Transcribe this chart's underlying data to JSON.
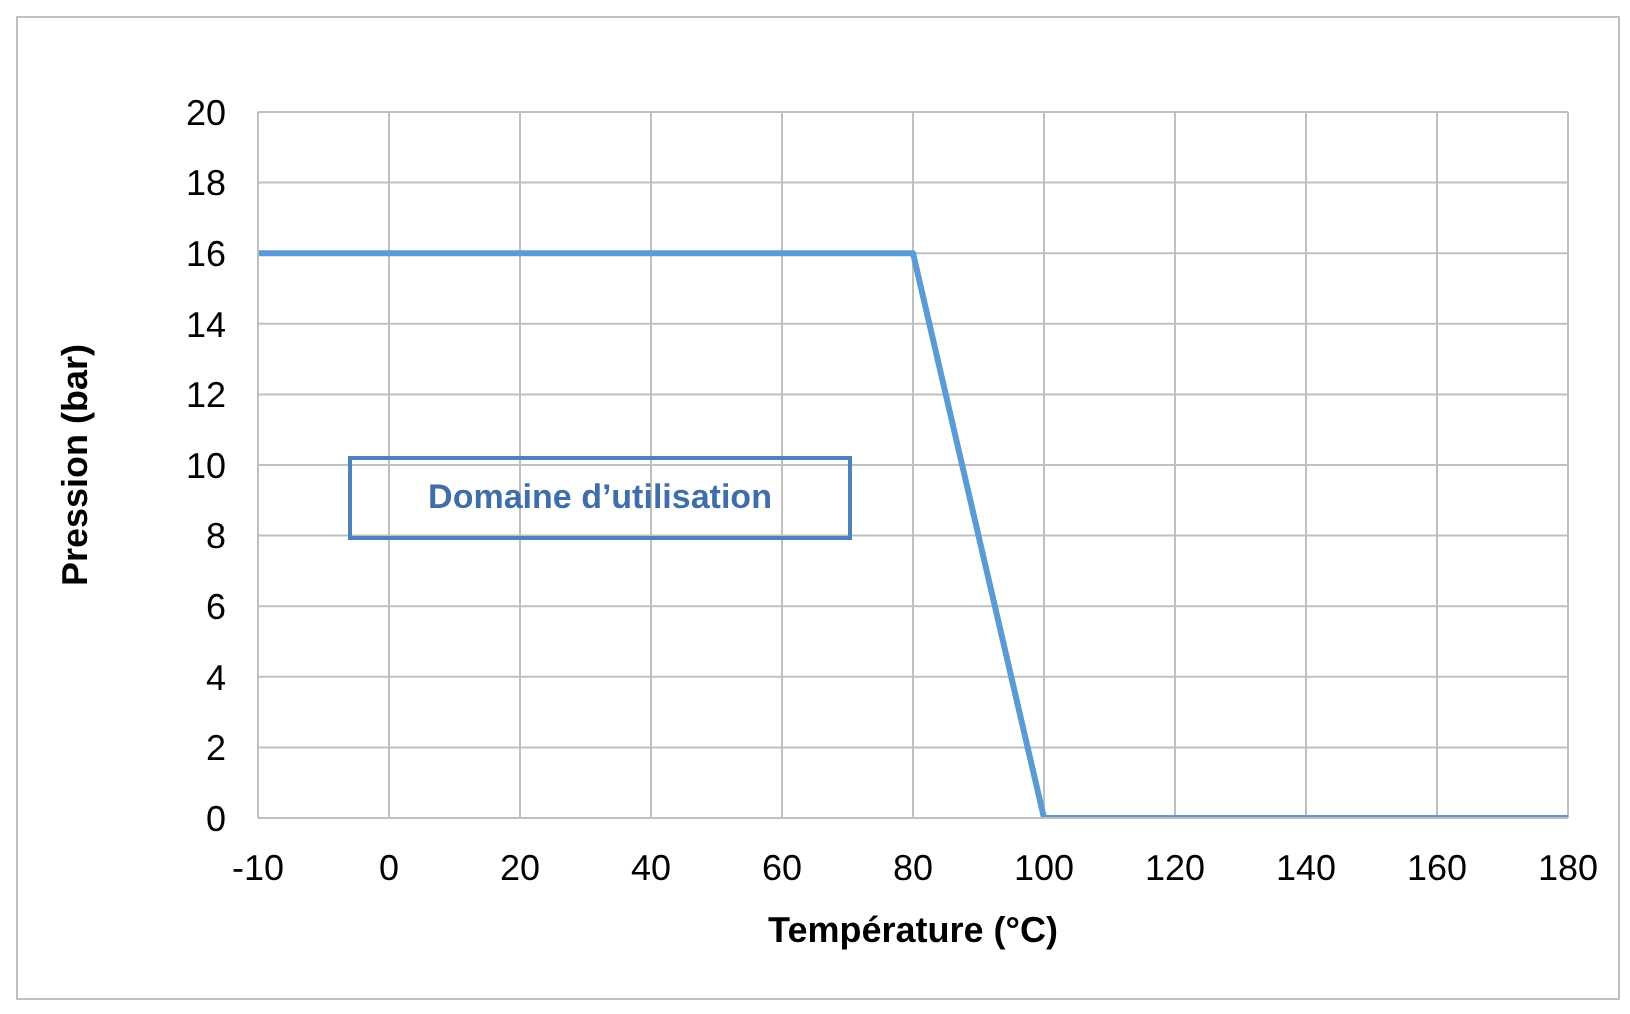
{
  "chart_data": {
    "type": "line",
    "xlabel": "Température (°C)",
    "ylabel": "Pression (bar)",
    "categories": [
      "-10",
      "0",
      "20",
      "40",
      "60",
      "80",
      "100",
      "120",
      "140",
      "160",
      "180"
    ],
    "series": [
      {
        "color": "#5b9bd5",
        "values": [
          16,
          16,
          16,
          16,
          16,
          16,
          0,
          0,
          0,
          0,
          0
        ]
      }
    ],
    "ylim": [
      0,
      20
    ],
    "yticks": [
      0,
      2,
      4,
      6,
      8,
      10,
      12,
      14,
      16,
      18,
      20
    ],
    "grid": true,
    "legend": false,
    "marker": "none",
    "line_style": "solid",
    "annotations": [
      "Domaine d’utilisation"
    ]
  }
}
